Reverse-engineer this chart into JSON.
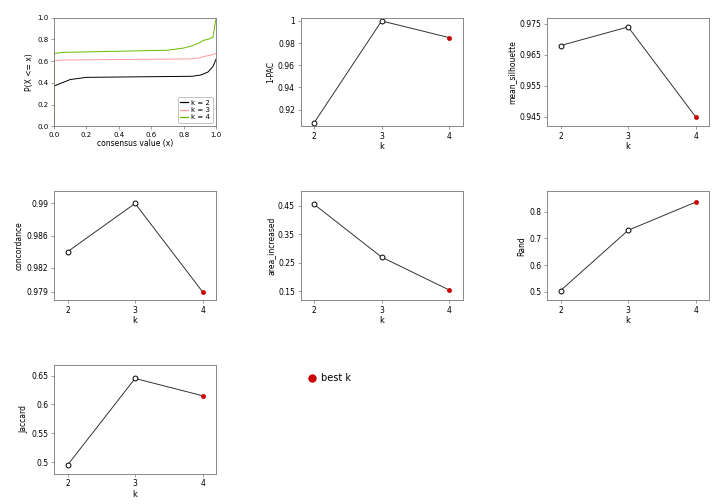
{
  "ecdf": {
    "k2_x": [
      0.0,
      0.0,
      0.05,
      0.1,
      0.15,
      0.2,
      0.85,
      0.9,
      0.92,
      0.95,
      0.98,
      1.0,
      1.0
    ],
    "k2_y": [
      0.0,
      0.37,
      0.4,
      0.43,
      0.44,
      0.45,
      0.46,
      0.47,
      0.48,
      0.5,
      0.55,
      0.62,
      0.62
    ],
    "k3_x": [
      0.0,
      0.0,
      0.05,
      0.85,
      0.9,
      0.92,
      0.95,
      0.98,
      1.0,
      1.0
    ],
    "k3_y": [
      0.0,
      0.6,
      0.61,
      0.62,
      0.63,
      0.64,
      0.65,
      0.66,
      0.67,
      0.67
    ],
    "k4_x": [
      0.0,
      0.0,
      0.05,
      0.7,
      0.75,
      0.8,
      0.85,
      0.9,
      0.92,
      0.95,
      0.98,
      1.0,
      1.0
    ],
    "k4_y": [
      0.0,
      0.67,
      0.68,
      0.7,
      0.71,
      0.72,
      0.74,
      0.77,
      0.79,
      0.8,
      0.82,
      1.0,
      1.0
    ],
    "colors": {
      "k2": "#000000",
      "k3": "#FF9999",
      "k4": "#66BB00"
    },
    "xlabel": "consensus value (x)",
    "ylabel": "P(X <= x)",
    "ylim": [
      0.0,
      1.0
    ],
    "xlim": [
      0.0,
      1.0
    ],
    "legend": {
      "k2": "k = 2",
      "k3": "k = 3",
      "k4": "k = 4"
    }
  },
  "pac": {
    "k": [
      2,
      3,
      4
    ],
    "y": [
      0.908,
      1.0,
      0.985
    ],
    "best_k": 4,
    "ylabel": "1-PAC",
    "xlabel": "k",
    "ylim": [
      0.905,
      1.003
    ],
    "yticks": [
      0.92,
      0.94,
      0.96,
      0.98,
      1.0
    ]
  },
  "silhouette": {
    "k": [
      2,
      3,
      4
    ],
    "y": [
      0.968,
      0.974,
      0.945
    ],
    "best_k": 4,
    "ylabel": "mean_silhouette",
    "xlabel": "k",
    "ylim": [
      0.942,
      0.977
    ],
    "yticks": [
      0.945,
      0.955,
      0.965,
      0.975
    ]
  },
  "concordance": {
    "k": [
      2,
      3,
      4
    ],
    "y": [
      0.984,
      0.99,
      0.979
    ],
    "best_k": 4,
    "ylabel": "concordance",
    "xlabel": "k",
    "ylim": [
      0.978,
      0.9915
    ],
    "yticks": [
      0.979,
      0.982,
      0.986,
      0.99
    ]
  },
  "area_increased": {
    "k": [
      2,
      3,
      4
    ],
    "y": [
      0.455,
      0.27,
      0.155
    ],
    "best_k": 4,
    "ylabel": "area_increased",
    "xlabel": "k",
    "ylim": [
      0.12,
      0.5
    ],
    "yticks": [
      0.15,
      0.25,
      0.35,
      0.45
    ]
  },
  "rand": {
    "k": [
      2,
      3,
      4
    ],
    "y": [
      0.505,
      0.73,
      0.835
    ],
    "best_k": 4,
    "ylabel": "Rand",
    "xlabel": "k",
    "ylim": [
      0.47,
      0.875
    ],
    "yticks": [
      0.5,
      0.6,
      0.7,
      0.8
    ]
  },
  "jaccard": {
    "k": [
      2,
      3,
      4
    ],
    "y": [
      0.495,
      0.645,
      0.615
    ],
    "best_k": 4,
    "ylabel": "Jaccard",
    "xlabel": "k",
    "ylim": [
      0.48,
      0.668
    ],
    "yticks": [
      0.5,
      0.55,
      0.6,
      0.65
    ]
  },
  "best_k_color": "#CC0000",
  "open_circle_color": "#000000",
  "line_color": "#333333",
  "background": "#FFFFFF"
}
